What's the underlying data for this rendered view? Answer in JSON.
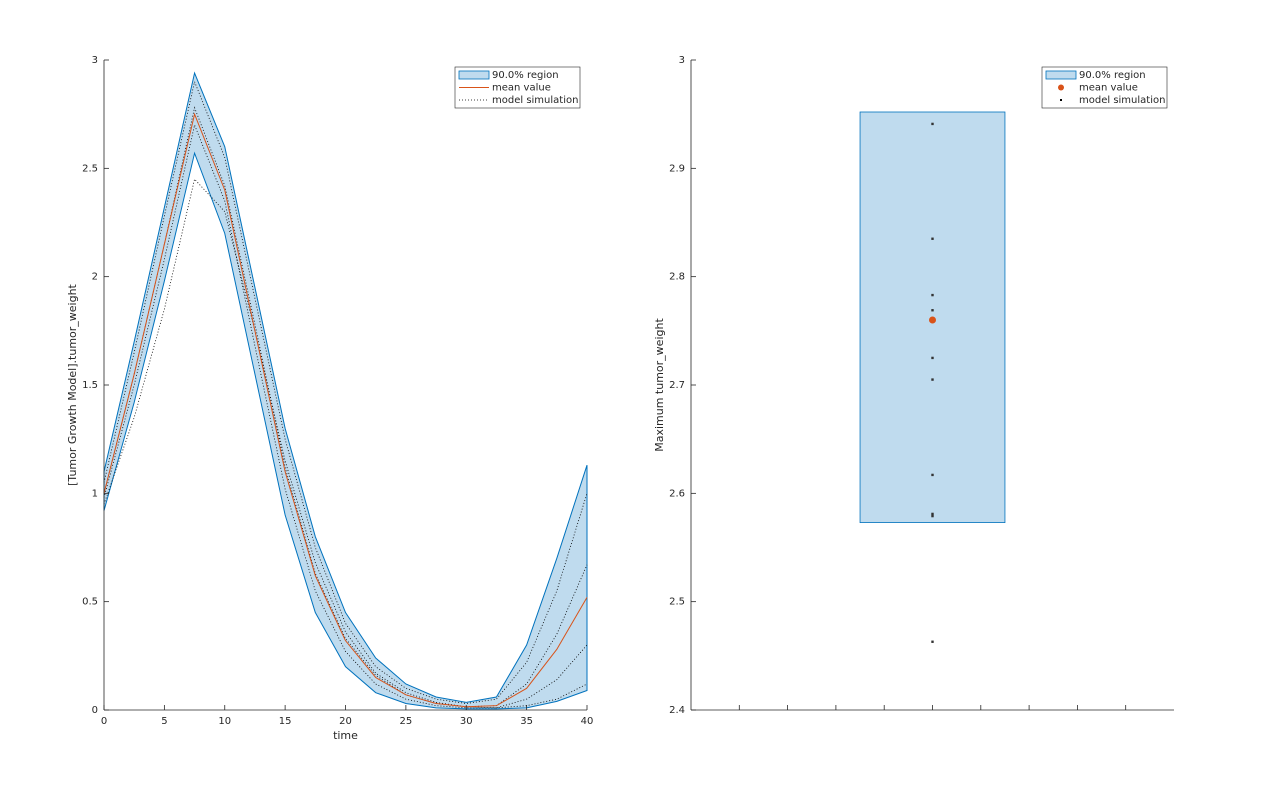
{
  "chart_data": [
    {
      "type": "line",
      "xlabel": "time",
      "ylabel": "[Tumor Growth Model].tumor_weight",
      "xlim": [
        0,
        40
      ],
      "ylim": [
        0,
        3
      ],
      "xticks": [
        0,
        5,
        10,
        15,
        20,
        25,
        30,
        35,
        40
      ],
      "yticks": [
        0,
        0.5,
        1,
        1.5,
        2,
        2.5,
        3
      ],
      "legend": "upper right",
      "x": [
        0,
        2.5,
        5,
        7.5,
        10,
        12.5,
        15,
        17.5,
        20,
        22.5,
        25,
        27.5,
        30,
        32.5,
        35,
        37.5,
        40
      ],
      "band": {
        "name": "90.0% region",
        "color": "#bfdbee",
        "edge": "#0072bd",
        "upper": [
          1.1,
          1.7,
          2.32,
          2.94,
          2.6,
          1.95,
          1.3,
          0.8,
          0.45,
          0.24,
          0.12,
          0.06,
          0.035,
          0.06,
          0.3,
          0.7,
          1.13
        ],
        "lower": [
          0.92,
          1.42,
          1.98,
          2.57,
          2.2,
          1.55,
          0.9,
          0.45,
          0.2,
          0.08,
          0.03,
          0.01,
          0.005,
          0.005,
          0.01,
          0.04,
          0.09
        ]
      },
      "mean": {
        "name": "mean value",
        "color": "#d95319",
        "values": [
          1.0,
          1.55,
          2.15,
          2.75,
          2.4,
          1.75,
          1.1,
          0.62,
          0.32,
          0.15,
          0.07,
          0.03,
          0.015,
          0.02,
          0.1,
          0.28,
          0.52
        ]
      },
      "simulations": {
        "name": "model simulation",
        "color": "#000000",
        "series": [
          [
            0.95,
            1.35,
            1.85,
            2.45,
            2.3,
            1.75,
            1.15,
            0.68,
            0.36,
            0.17,
            0.08,
            0.035,
            0.015,
            0.01,
            0.02,
            0.05,
            0.12
          ],
          [
            1.05,
            1.65,
            2.28,
            2.9,
            2.55,
            1.9,
            1.25,
            0.75,
            0.4,
            0.2,
            0.1,
            0.05,
            0.03,
            0.05,
            0.22,
            0.55,
            1.0
          ],
          [
            1.0,
            1.55,
            2.15,
            2.78,
            2.42,
            1.78,
            1.12,
            0.63,
            0.33,
            0.16,
            0.07,
            0.03,
            0.015,
            0.02,
            0.12,
            0.35,
            0.67
          ],
          [
            0.98,
            1.5,
            2.08,
            2.7,
            2.35,
            1.68,
            1.02,
            0.55,
            0.27,
            0.12,
            0.05,
            0.02,
            0.01,
            0.01,
            0.05,
            0.14,
            0.3
          ]
        ]
      }
    },
    {
      "type": "scatter",
      "ylabel": "Maximum tumor_weight",
      "xlim": [
        0,
        10
      ],
      "ylim": [
        2.4,
        3
      ],
      "xticks": [
        1,
        2,
        3,
        4,
        5,
        6,
        7,
        8,
        9
      ],
      "yticks": [
        2.4,
        2.5,
        2.6,
        2.7,
        2.8,
        2.9,
        3
      ],
      "legend": "upper right",
      "band": {
        "name": "90.0% region",
        "color": "#bfdbee",
        "edge": "#0072bd",
        "x": [
          3.5,
          6.5
        ],
        "lower": 2.573,
        "upper": 2.952
      },
      "mean": {
        "name": "mean value",
        "color": "#d95319",
        "x": 5,
        "value": 2.76
      },
      "simulations": {
        "name": "model simulation",
        "color": "#000000",
        "x": 5,
        "values": [
          2.941,
          2.835,
          2.783,
          2.769,
          2.725,
          2.705,
          2.617,
          2.581,
          2.579,
          2.463
        ]
      }
    }
  ]
}
